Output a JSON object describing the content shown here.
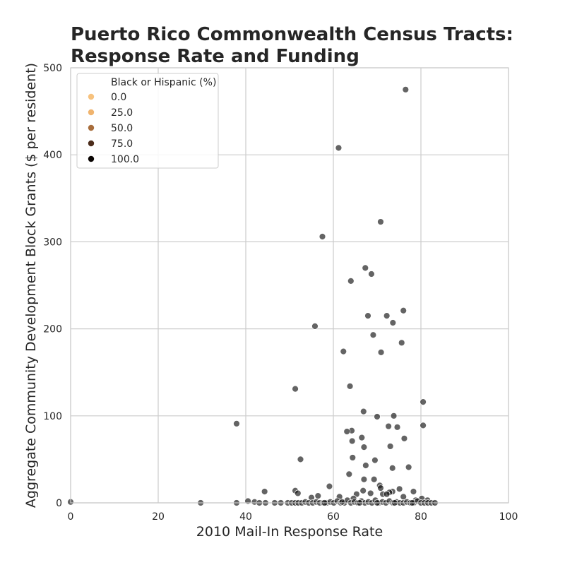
{
  "chart_data": {
    "type": "scatter",
    "title_lines": [
      "Puerto Rico Commonwealth Census Tracts:",
      "Response Rate and Funding"
    ],
    "xlabel": "2010 Mail-In Response Rate",
    "ylabel": "Aggregate Community Development Block Grants ($ per resident)",
    "xlim": [
      0,
      100
    ],
    "ylim": [
      0,
      500
    ],
    "xticks": [
      0,
      20,
      40,
      60,
      80,
      100
    ],
    "yticks": [
      0,
      100,
      200,
      300,
      400,
      500
    ],
    "xtick_labels": [
      "0",
      "20",
      "40",
      "60",
      "80",
      "100"
    ],
    "ytick_labels": [
      "0",
      "100",
      "200",
      "300",
      "400",
      "500"
    ],
    "grid": true,
    "legend": {
      "title": "Black or Hispanic (%)",
      "placement": "top-left",
      "entries": [
        {
          "label": "0.0",
          "color": "#f7c27e"
        },
        {
          "label": "25.0",
          "color": "#f0b46e"
        },
        {
          "label": "50.0",
          "color": "#a86d3c"
        },
        {
          "label": "75.0",
          "color": "#4b2c1b"
        },
        {
          "label": "100.0",
          "color": "#0a0503"
        }
      ]
    },
    "point_color": "#111111",
    "points": [
      [
        76.5,
        475
      ],
      [
        61.2,
        408
      ],
      [
        70.8,
        323
      ],
      [
        57.5,
        306
      ],
      [
        67.3,
        270
      ],
      [
        68.7,
        263
      ],
      [
        64.0,
        255
      ],
      [
        76.0,
        221
      ],
      [
        67.9,
        215
      ],
      [
        72.2,
        215
      ],
      [
        73.6,
        207
      ],
      [
        55.8,
        203
      ],
      [
        69.1,
        193
      ],
      [
        75.6,
        184
      ],
      [
        62.3,
        174
      ],
      [
        70.9,
        173
      ],
      [
        63.8,
        134
      ],
      [
        51.3,
        131
      ],
      [
        80.5,
        116
      ],
      [
        66.9,
        105
      ],
      [
        70.0,
        99
      ],
      [
        73.8,
        100
      ],
      [
        37.9,
        91
      ],
      [
        80.5,
        89
      ],
      [
        72.6,
        88
      ],
      [
        74.6,
        87
      ],
      [
        64.2,
        83
      ],
      [
        63.1,
        82
      ],
      [
        66.5,
        75
      ],
      [
        76.2,
        74
      ],
      [
        64.3,
        71
      ],
      [
        67.0,
        64
      ],
      [
        73.0,
        65
      ],
      [
        69.5,
        49
      ],
      [
        64.4,
        52
      ],
      [
        52.5,
        50
      ],
      [
        77.2,
        41
      ],
      [
        67.4,
        43
      ],
      [
        73.5,
        40
      ],
      [
        63.6,
        33
      ],
      [
        67.0,
        27
      ],
      [
        69.3,
        27
      ],
      [
        59.1,
        19
      ],
      [
        70.6,
        20
      ],
      [
        66.8,
        14
      ],
      [
        75.1,
        16
      ],
      [
        70.8,
        17
      ],
      [
        51.3,
        14
      ],
      [
        44.3,
        13
      ],
      [
        78.3,
        13
      ],
      [
        51.9,
        11
      ],
      [
        73.5,
        13
      ],
      [
        72.8,
        12
      ],
      [
        68.5,
        11
      ],
      [
        65.3,
        10
      ],
      [
        71.3,
        10
      ],
      [
        72.2,
        10
      ],
      [
        61.4,
        7
      ],
      [
        56.5,
        8
      ],
      [
        64.6,
        5
      ],
      [
        76.0,
        7
      ],
      [
        80.2,
        5
      ],
      [
        78.8,
        3
      ],
      [
        81.5,
        3
      ],
      [
        55.0,
        6
      ],
      [
        0.0,
        1
      ],
      [
        29.7,
        0
      ],
      [
        37.9,
        0
      ],
      [
        40.5,
        2
      ],
      [
        42.0,
        1
      ],
      [
        43.1,
        0
      ],
      [
        44.5,
        0
      ],
      [
        46.6,
        0
      ],
      [
        48.0,
        0
      ],
      [
        49.6,
        0
      ],
      [
        50.5,
        0
      ],
      [
        51.3,
        0
      ],
      [
        52.0,
        0
      ],
      [
        52.8,
        0
      ],
      [
        53.6,
        1
      ],
      [
        54.4,
        0
      ],
      [
        55.3,
        0
      ],
      [
        56.1,
        1
      ],
      [
        56.9,
        0
      ],
      [
        57.7,
        0
      ],
      [
        58.5,
        0
      ],
      [
        59.3,
        1
      ],
      [
        60.1,
        0
      ],
      [
        60.9,
        2
      ],
      [
        61.7,
        0
      ],
      [
        62.5,
        0
      ],
      [
        63.2,
        3
      ],
      [
        64.0,
        0
      ],
      [
        64.8,
        1
      ],
      [
        65.6,
        0
      ],
      [
        66.4,
        2
      ],
      [
        67.2,
        0
      ],
      [
        68.0,
        1
      ],
      [
        68.8,
        0
      ],
      [
        69.6,
        3
      ],
      [
        70.4,
        0
      ],
      [
        71.2,
        1
      ],
      [
        72.0,
        0
      ],
      [
        72.8,
        2
      ],
      [
        73.6,
        0
      ],
      [
        74.4,
        1
      ],
      [
        75.2,
        0
      ],
      [
        76.0,
        0
      ],
      [
        76.8,
        1
      ],
      [
        77.6,
        0
      ],
      [
        78.4,
        0
      ],
      [
        79.2,
        2
      ],
      [
        80.0,
        0
      ],
      [
        80.8,
        0
      ],
      [
        81.6,
        0
      ],
      [
        82.4,
        0
      ],
      [
        83.2,
        0
      ],
      [
        58.0,
        0
      ],
      [
        62.0,
        1
      ],
      [
        66.0,
        0
      ],
      [
        70.0,
        0
      ],
      [
        74.0,
        0
      ],
      [
        78.0,
        0
      ]
    ]
  }
}
